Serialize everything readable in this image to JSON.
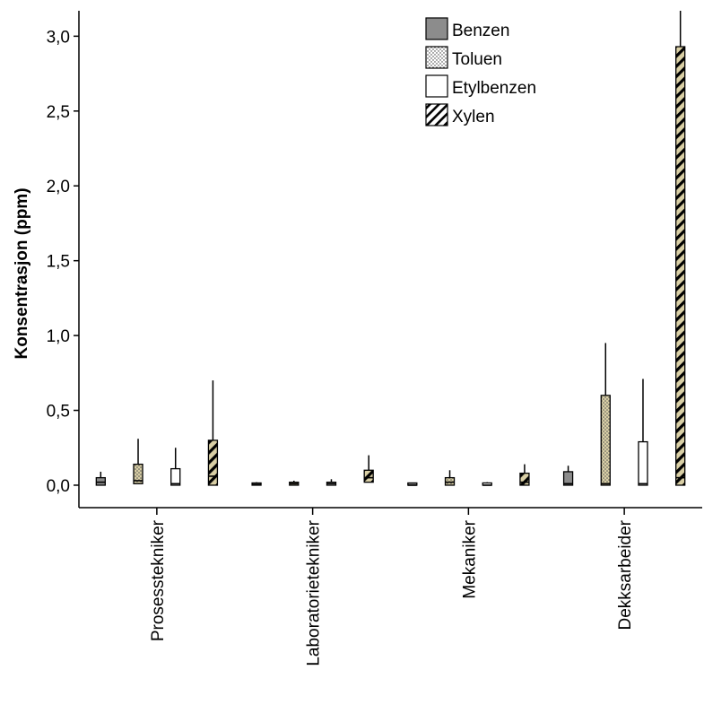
{
  "chart_data": {
    "type": "boxplot",
    "title": "",
    "xlabel": "",
    "ylabel": "Konsentrasjon (ppm)",
    "ylim": [
      -0.15,
      3.17
    ],
    "y_ticks": [
      0.0,
      0.5,
      1.0,
      1.5,
      2.0,
      2.5,
      3.0
    ],
    "y_tick_labels": [
      "0,0",
      "0,5",
      "1,0",
      "1,5",
      "2,0",
      "2,5",
      "3,0"
    ],
    "categories": [
      "Prosesstekniker",
      "Laboratorietekniker",
      "Mekaniker",
      "Dekksarbeider"
    ],
    "legend_position": "top-center",
    "series": [
      {
        "name": "Benzen",
        "pattern": "solid-gray",
        "color": "#8c8c8c",
        "boxes": [
          {
            "min": 0.0,
            "q1": 0.0,
            "median": 0.02,
            "q3": 0.05,
            "max": 0.09
          },
          {
            "min": 0.0,
            "q1": 0.0,
            "median": 0.005,
            "q3": 0.01,
            "max": 0.02
          },
          {
            "min": 0.0,
            "q1": 0.0,
            "median": 0.0,
            "q3": 0.0,
            "max": 0.0
          },
          {
            "min": 0.0,
            "q1": 0.0,
            "median": 0.01,
            "q3": 0.09,
            "max": 0.13
          }
        ]
      },
      {
        "name": "Toluen",
        "pattern": "dots",
        "color": "#d9cfa5",
        "boxes": [
          {
            "min": 0.0,
            "q1": 0.01,
            "median": 0.03,
            "q3": 0.14,
            "max": 0.31
          },
          {
            "min": 0.0,
            "q1": 0.0,
            "median": 0.01,
            "q3": 0.02,
            "max": 0.03
          },
          {
            "min": 0.0,
            "q1": 0.0,
            "median": 0.02,
            "q3": 0.05,
            "max": 0.1
          },
          {
            "min": 0.0,
            "q1": 0.0,
            "median": 0.01,
            "q3": 0.6,
            "max": 0.95
          }
        ]
      },
      {
        "name": "Etylbenzen",
        "pattern": "white",
        "color": "#ffffff",
        "boxes": [
          {
            "min": 0.0,
            "q1": 0.0,
            "median": 0.01,
            "q3": 0.11,
            "max": 0.25
          },
          {
            "min": 0.0,
            "q1": 0.0,
            "median": 0.01,
            "q3": 0.02,
            "max": 0.04
          },
          {
            "min": 0.0,
            "q1": 0.0,
            "median": 0.0,
            "q3": 0.01,
            "max": 0.02
          },
          {
            "min": 0.0,
            "q1": 0.0,
            "median": 0.01,
            "q3": 0.29,
            "max": 0.71
          }
        ]
      },
      {
        "name": "Xylen",
        "pattern": "diagonal-hatch",
        "color": "#d9cfa5",
        "boxes": [
          {
            "min": 0.0,
            "q1": 0.0,
            "median": 0.06,
            "q3": 0.3,
            "max": 0.7
          },
          {
            "min": 0.0,
            "q1": 0.02,
            "median": 0.05,
            "q3": 0.1,
            "max": 0.2
          },
          {
            "min": 0.0,
            "q1": 0.0,
            "median": 0.02,
            "q3": 0.08,
            "max": 0.14
          },
          {
            "min": 0.0,
            "q1": 0.0,
            "median": 0.05,
            "q3": 2.93,
            "max": 3.17
          }
        ]
      }
    ]
  }
}
